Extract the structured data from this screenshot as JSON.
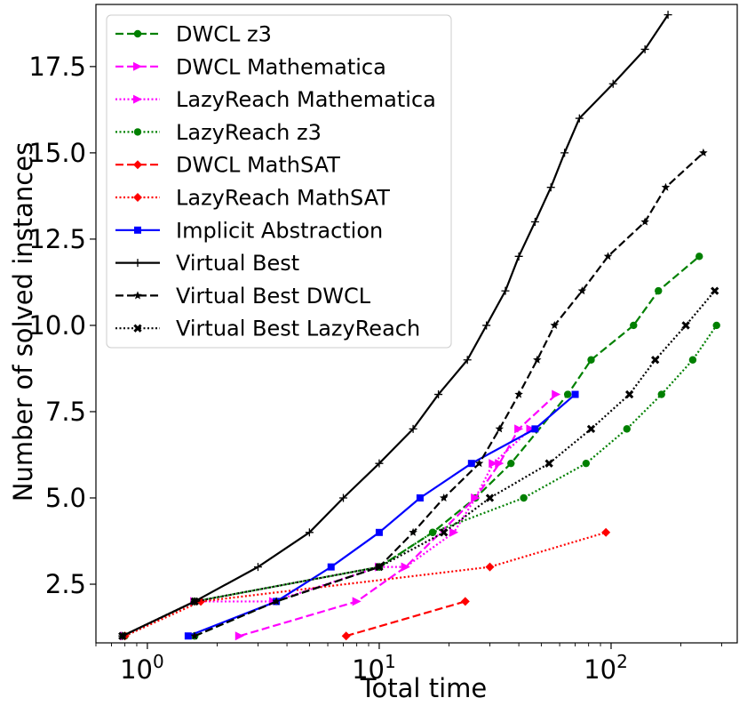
{
  "chart_data": {
    "type": "line",
    "title": "",
    "xlabel": "Total time",
    "ylabel": "Number of solved instances",
    "xscale": "log",
    "xlim": [
      0.6,
      350
    ],
    "ylim": [
      0.8,
      19.3
    ],
    "x_ticks": [
      {
        "value": 1,
        "base": "10",
        "exp": "0"
      },
      {
        "value": 10,
        "base": "10",
        "exp": "1"
      },
      {
        "value": 100,
        "base": "10",
        "exp": "2"
      }
    ],
    "y_ticks": [
      {
        "value": 2.5,
        "label": "2.5"
      },
      {
        "value": 5.0,
        "label": "5.0"
      },
      {
        "value": 7.5,
        "label": "7.5"
      },
      {
        "value": 10.0,
        "label": "10.0"
      },
      {
        "value": 12.5,
        "label": "12.5"
      },
      {
        "value": 15.0,
        "label": "15.0"
      },
      {
        "value": 17.5,
        "label": "17.5"
      }
    ],
    "grid": false,
    "legend_position": "top-left",
    "series": [
      {
        "name": "DWCL z3",
        "color": "#008000",
        "dash": "dashed",
        "marker": "circle",
        "x": [
          1.6,
          3.6,
          10,
          17,
          26,
          37,
          65,
          82,
          125,
          160,
          240
        ],
        "y": [
          1,
          2,
          3,
          4,
          5,
          6,
          8,
          9,
          10,
          11,
          12
        ]
      },
      {
        "name": "DWCL Mathematica",
        "color": "#ff00ff",
        "dash": "dashed",
        "marker": "triangle-right",
        "x": [
          2.5,
          8,
          13,
          26,
          33,
          40,
          58
        ],
        "y": [
          1,
          2,
          3,
          5,
          6,
          7,
          8
        ]
      },
      {
        "name": "LazyReach Mathematica",
        "color": "#ff00ff",
        "dash": "dotted",
        "marker": "triangle-right",
        "x": [
          0.8,
          1.6,
          3.5,
          10,
          13,
          21,
          26,
          31,
          45
        ],
        "y": [
          1,
          2,
          2,
          3,
          3,
          4,
          5,
          6,
          7
        ]
      },
      {
        "name": "LazyReach z3",
        "color": "#008000",
        "dash": "dotted",
        "marker": "circle",
        "x": [
          0.8,
          1.6,
          10,
          17,
          42,
          78,
          117,
          165,
          225,
          285
        ],
        "y": [
          1,
          2,
          3,
          4,
          5,
          6,
          7,
          8,
          9,
          10
        ]
      },
      {
        "name": "DWCL MathSAT",
        "color": "#ff0000",
        "dash": "dashed",
        "marker": "diamond",
        "x": [
          7.2,
          23.5
        ],
        "y": [
          1,
          2
        ]
      },
      {
        "name": "LazyReach MathSAT",
        "color": "#ff0000",
        "dash": "dotted",
        "marker": "diamond",
        "x": [
          0.8,
          1.7,
          30,
          95
        ],
        "y": [
          1,
          2,
          3,
          4
        ]
      },
      {
        "name": "Implicit Abstraction",
        "color": "#0000ff",
        "dash": "solid",
        "marker": "square",
        "x": [
          1.5,
          3.6,
          6.2,
          10,
          15,
          25,
          47,
          70
        ],
        "y": [
          1,
          2,
          3,
          4,
          5,
          6,
          7,
          8
        ]
      },
      {
        "name": "Virtual Best",
        "color": "#000000",
        "dash": "solid",
        "marker": "plus",
        "x": [
          0.78,
          1.6,
          3,
          5,
          7,
          10,
          14,
          18,
          24,
          29,
          35,
          40,
          47,
          55,
          63,
          73,
          102,
          140,
          176
        ],
        "y": [
          1,
          2,
          3,
          4,
          5,
          6,
          7,
          8,
          9,
          10,
          11,
          12,
          13,
          14,
          15,
          16,
          17,
          18,
          19
        ]
      },
      {
        "name": "Virtual Best DWCL",
        "color": "#000000",
        "dash": "dashed",
        "marker": "star",
        "x": [
          1.6,
          3.6,
          10,
          14,
          19,
          27,
          33,
          40,
          48,
          57,
          75,
          97,
          140,
          172,
          250
        ],
        "y": [
          1,
          2,
          3,
          4,
          5,
          6,
          7,
          8,
          9,
          10,
          11,
          12,
          13,
          14,
          15
        ]
      },
      {
        "name": "Virtual Best LazyReach",
        "color": "#000000",
        "dash": "dotted",
        "marker": "x",
        "x": [
          0.78,
          1.6,
          10,
          19,
          30,
          54,
          82,
          120,
          155,
          210,
          280
        ],
        "y": [
          1,
          2,
          3,
          4,
          5,
          6,
          7,
          8,
          9,
          10,
          11
        ]
      }
    ]
  }
}
